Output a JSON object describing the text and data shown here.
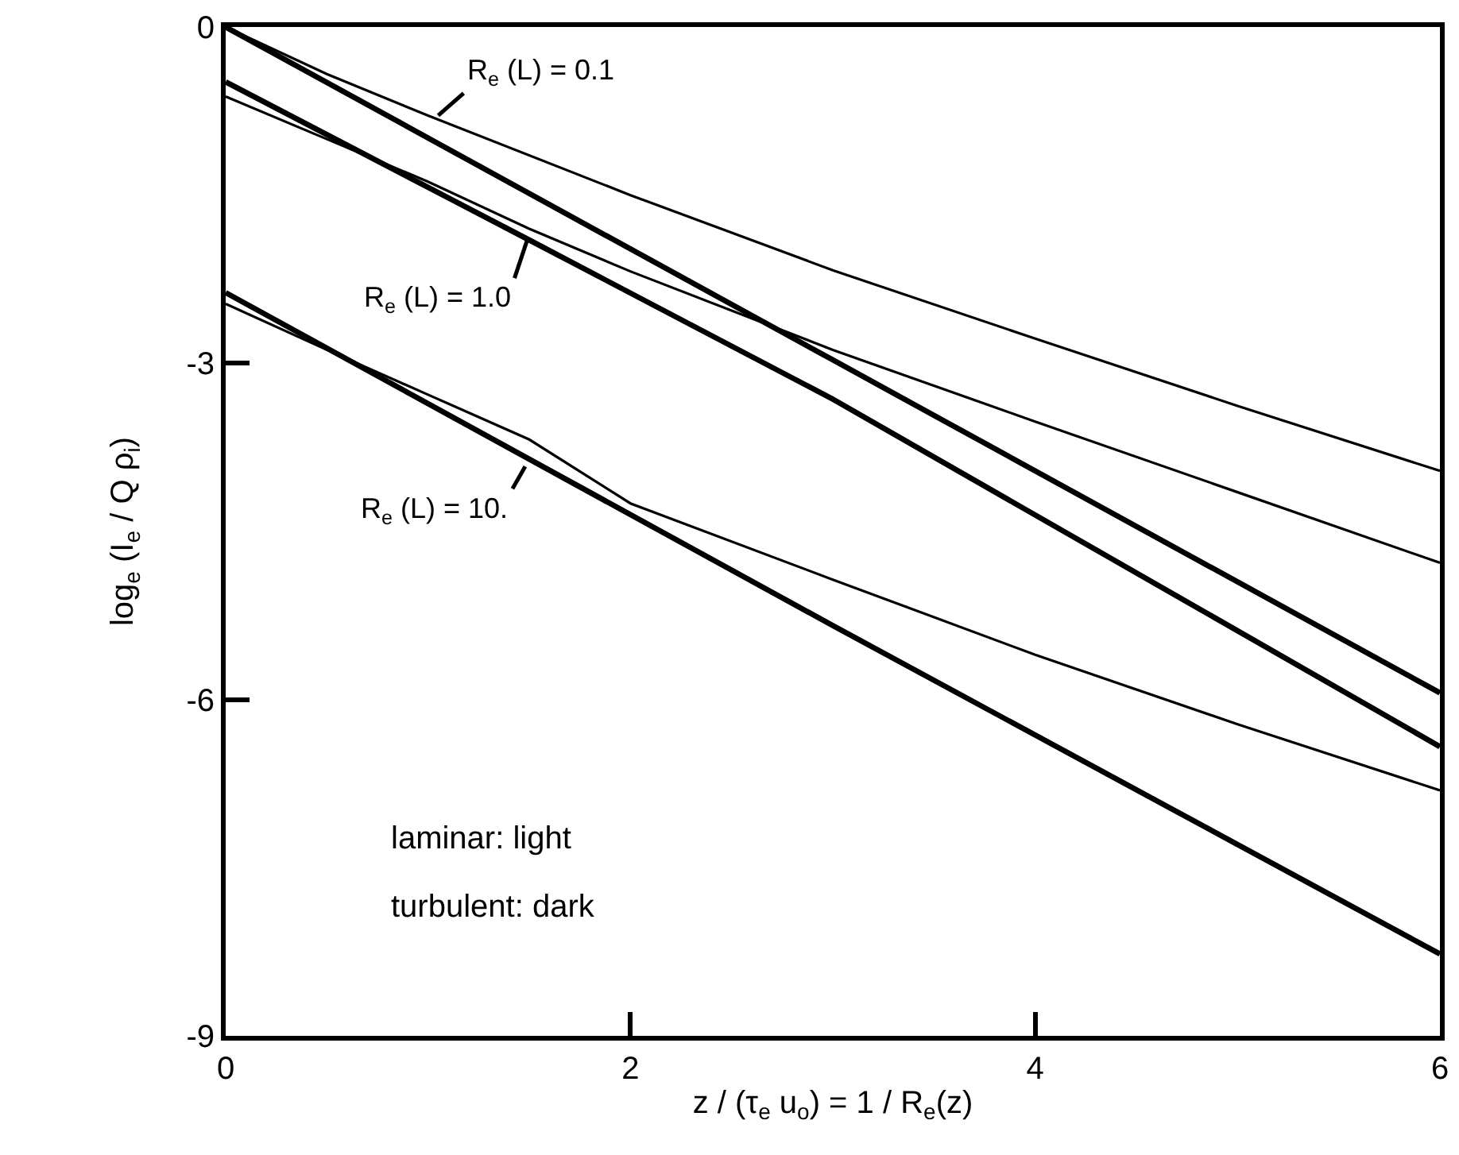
{
  "chart_data": {
    "type": "line",
    "xlabel": "z / (τ$_{e}$ u$_{o}$) = 1 / R$_{e}$(z)",
    "ylabel": "log$_{e}$ (I$_{e}$ / Q ρ$_{i}$)",
    "xlim": [
      0,
      6
    ],
    "xticks": [
      0,
      2,
      4,
      6
    ],
    "ylim": [
      -9,
      0
    ],
    "yticks": [
      -9,
      -6,
      -3,
      0
    ],
    "grid": false,
    "marker": "none",
    "line_style": "solid",
    "series": [
      {
        "color": "#000000",
        "x": [
          0,
          0.5,
          1,
          2,
          3,
          4,
          5,
          6
        ],
        "values": [
          0,
          -0.42,
          -0.79,
          -1.5,
          -2.17,
          -2.78,
          -3.38,
          -3.96
        ]
      },
      {
        "color": "#000000",
        "x": [
          0,
          0.5,
          1,
          1.5,
          2,
          3,
          4,
          5,
          6
        ],
        "values": [
          -0.62,
          -1.0,
          -1.38,
          -1.8,
          -2.18,
          -2.88,
          -3.52,
          -4.15,
          -4.78
        ]
      },
      {
        "color": "#000000",
        "x": [
          0,
          0.5,
          1,
          1.5,
          2,
          3,
          4,
          5,
          6
        ],
        "values": [
          -2.47,
          -2.88,
          -3.28,
          -3.68,
          -4.25,
          -4.93,
          -5.6,
          -6.22,
          -6.81
        ]
      },
      {
        "color": "#000000",
        "x": [
          0,
          3,
          6
        ],
        "values": [
          0,
          -2.97,
          -5.94
        ]
      },
      {
        "color": "#000000",
        "x": [
          0,
          1.5,
          3,
          6
        ],
        "values": [
          -0.49,
          -1.9,
          -3.32,
          -6.42
        ]
      },
      {
        "color": "#000000",
        "x": [
          0,
          3,
          6
        ],
        "values": [
          -2.37,
          -5.34,
          -8.27
        ]
      }
    ],
    "annotations": [
      {
        "text": "R$_{e}$ (L) = 0.1",
        "x": 1.05,
        "y": -0.79
      },
      {
        "text": "R$_{e}$ (L) = 1.0",
        "x": 1.49,
        "y": -1.9
      },
      {
        "text": "R$_{e}$ (L) = 10.",
        "x": 1.48,
        "y": -3.92
      },
      "laminar: light",
      "turbulent: dark"
    ]
  }
}
